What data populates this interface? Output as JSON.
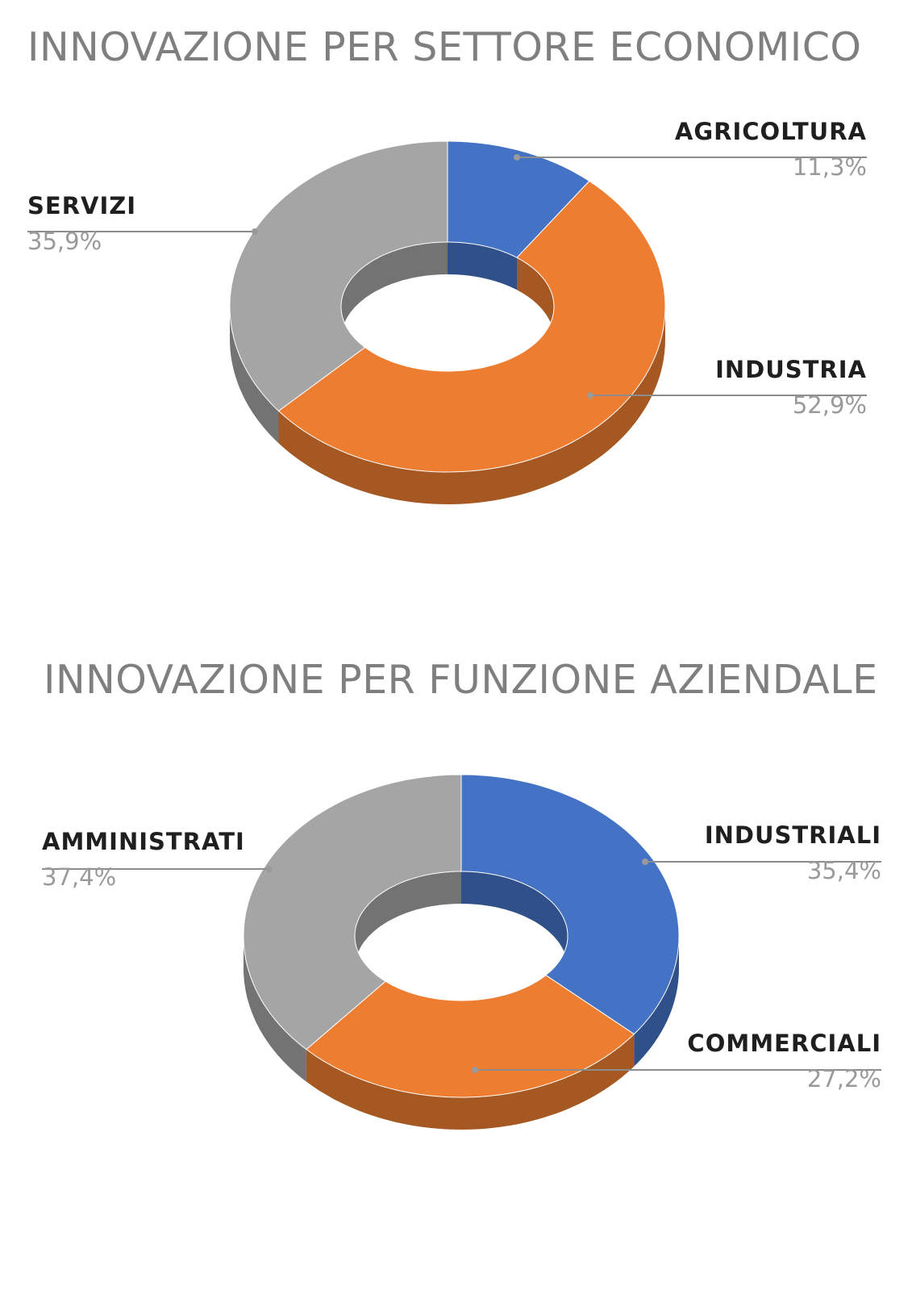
{
  "chart_data": [
    {
      "type": "pie",
      "title": "INNOVAZIONE PER SETTORE ECONOMICO",
      "categories": [
        "AGRICOLTURA",
        "INDUSTRIA",
        "SERVIZI"
      ],
      "values": [
        11.3,
        52.9,
        35.9
      ],
      "value_labels": [
        "11,3%",
        "52,9%",
        "35,9%"
      ],
      "colors": [
        "#4472c4",
        "#ed7d31",
        "#a5a5a5"
      ],
      "style": "3d-doughnut"
    },
    {
      "type": "pie",
      "title": "INNOVAZIONE PER FUNZIONE AZIENDALE",
      "categories": [
        "INDUSTRIALI",
        "COMMERCIALI",
        "AMMINISTRATI"
      ],
      "values": [
        35.4,
        27.2,
        37.4
      ],
      "value_labels": [
        "35,4%",
        "27,2%",
        "37,4%"
      ],
      "colors": [
        "#4472c4",
        "#ed7d31",
        "#a5a5a5"
      ],
      "style": "3d-doughnut"
    }
  ]
}
